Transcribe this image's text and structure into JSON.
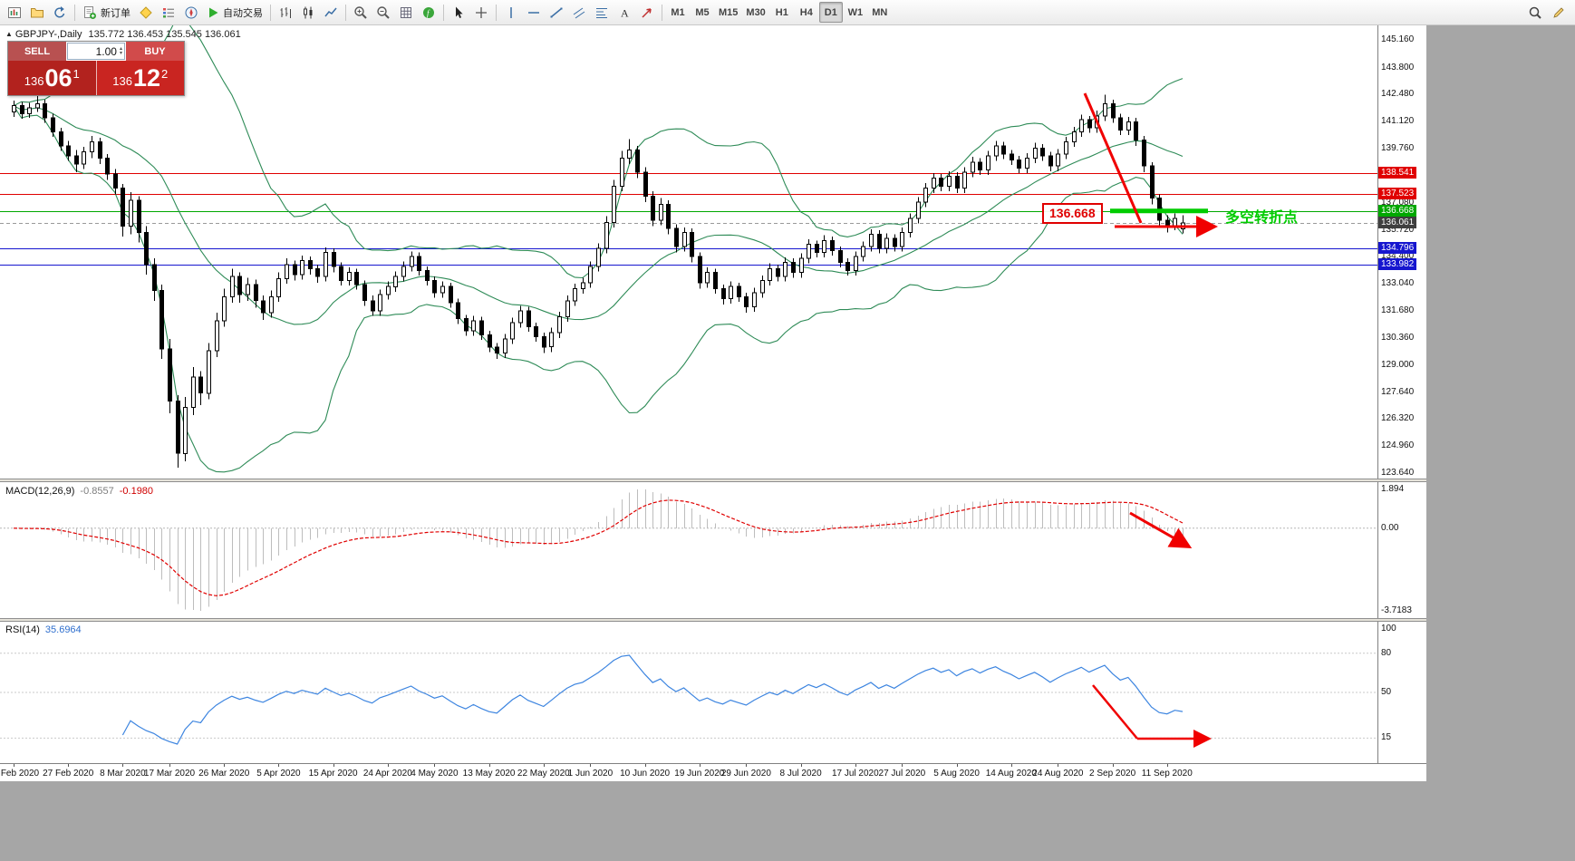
{
  "toolbar": {
    "new_order_label": "新订单",
    "autotrading_label": "自动交易",
    "timeframes": [
      "M1",
      "M5",
      "M15",
      "M30",
      "H1",
      "H4",
      "D1",
      "W1",
      "MN"
    ],
    "active_timeframe": "D1"
  },
  "chart": {
    "title": {
      "symbol": "GBPJPY-,Daily",
      "ohlc": "135.772 136.453 135.545 136.061"
    },
    "one_click": {
      "sell_label": "SELL",
      "buy_label": "BUY",
      "volume": "1.00",
      "sell_price": {
        "prefix": "136",
        "big": "06",
        "sup": "1"
      },
      "buy_price": {
        "prefix": "136",
        "big": "12",
        "sup": "2"
      },
      "sell_head_color": "#b85151",
      "buy_head_color": "#d14b4b",
      "sell_price_color": "#b2221e",
      "buy_price_color": "#c92521"
    },
    "axis_ticks": [
      "145.160",
      "143.800",
      "142.480",
      "141.120",
      "139.760",
      "137.080",
      "135.720",
      "134.400",
      "133.040",
      "131.680",
      "130.360",
      "129.000",
      "127.640",
      "126.320",
      "124.960",
      "123.640"
    ],
    "levels": [
      {
        "label": "138.541",
        "price": 138.541,
        "color": "#e00000"
      },
      {
        "label": "137.523",
        "price": 137.523,
        "color": "#e00000"
      },
      {
        "label": "136.668",
        "price": 136.668,
        "color": "#00a800"
      },
      {
        "label": "134.796",
        "price": 134.796,
        "color": "#1616cf"
      },
      {
        "label": "133.982",
        "price": 133.982,
        "color": "#1616cf"
      }
    ],
    "bid": {
      "label": "136.061",
      "price": 136.061
    },
    "annotations": {
      "level_callout": "136.668",
      "note": "多空转折点"
    }
  },
  "macd": {
    "name": "MACD(12,26,9)",
    "value_main": "-0.8557",
    "value_signal": "-0.1980",
    "scale_top": "1.894",
    "scale_zero": "0.00",
    "scale_bottom": "-3.7183"
  },
  "rsi": {
    "name": "RSI(14)",
    "value": "35.6964",
    "levels": [
      100,
      80,
      50,
      15
    ],
    "level_labels": [
      "100",
      "80",
      "50",
      "15"
    ]
  },
  "chart_data": {
    "type": "candlestick",
    "symbol": "GBPJPY-",
    "timeframe": "Daily",
    "y_range": [
      123.35,
      145.9
    ],
    "x_labels": [
      "18 Feb 2020",
      "27 Feb 2020",
      "8 Mar 2020",
      "17 Mar 2020",
      "26 Mar 2020",
      "5 Apr 2020",
      "15 Apr 2020",
      "24 Apr 2020",
      "4 May 2020",
      "13 May 2020",
      "22 May 2020",
      "1 Jun 2020",
      "10 Jun 2020",
      "19 Jun 2020",
      "29 Jun 2020",
      "8 Jul 2020",
      "17 Jul 2020",
      "27 Jul 2020",
      "5 Aug 2020",
      "14 Aug 2020",
      "24 Aug 2020",
      "2 Sep 2020",
      "11 Sep 2020"
    ],
    "label_indices": [
      0,
      7,
      14,
      20,
      27,
      34,
      41,
      48,
      54,
      61,
      68,
      74,
      81,
      88,
      94,
      101,
      108,
      114,
      121,
      128,
      134,
      141,
      148
    ],
    "ohlc": [
      [
        141.6,
        142.15,
        141.35,
        141.9
      ],
      [
        141.9,
        142.1,
        141.25,
        141.5
      ],
      [
        141.5,
        142.05,
        141.3,
        141.8
      ],
      [
        141.8,
        142.4,
        141.6,
        142.0
      ],
      [
        142.0,
        142.2,
        141.05,
        141.3
      ],
      [
        141.3,
        141.5,
        140.35,
        140.6
      ],
      [
        140.6,
        140.8,
        139.65,
        139.9
      ],
      [
        139.9,
        140.15,
        139.15,
        139.4
      ],
      [
        139.4,
        139.7,
        138.6,
        139.0
      ],
      [
        139.0,
        139.85,
        138.75,
        139.6
      ],
      [
        139.6,
        140.4,
        139.3,
        140.1
      ],
      [
        140.1,
        140.3,
        139.0,
        139.3
      ],
      [
        139.3,
        139.5,
        138.2,
        138.5
      ],
      [
        138.5,
        138.75,
        137.5,
        137.8
      ],
      [
        137.8,
        138.0,
        135.4,
        135.9
      ],
      [
        135.9,
        137.6,
        135.5,
        137.2
      ],
      [
        137.2,
        137.4,
        135.1,
        135.6
      ],
      [
        135.6,
        135.9,
        133.5,
        134.0
      ],
      [
        134.0,
        134.3,
        132.2,
        132.7
      ],
      [
        132.7,
        133.0,
        129.3,
        129.8
      ],
      [
        129.8,
        130.3,
        126.6,
        127.2
      ],
      [
        127.2,
        127.5,
        123.9,
        124.6
      ],
      [
        124.6,
        127.4,
        124.2,
        126.9
      ],
      [
        126.9,
        128.9,
        126.5,
        128.4
      ],
      [
        128.4,
        128.7,
        127.0,
        127.6
      ],
      [
        127.6,
        130.1,
        127.3,
        129.7
      ],
      [
        129.7,
        131.6,
        129.4,
        131.2
      ],
      [
        131.2,
        132.8,
        130.9,
        132.4
      ],
      [
        132.4,
        133.8,
        132.1,
        133.4
      ],
      [
        133.4,
        133.6,
        132.1,
        132.5
      ],
      [
        132.5,
        133.35,
        132.2,
        133.0
      ],
      [
        133.0,
        133.25,
        131.85,
        132.2
      ],
      [
        132.2,
        132.45,
        131.25,
        131.6
      ],
      [
        131.6,
        132.7,
        131.35,
        132.4
      ],
      [
        132.4,
        133.6,
        132.15,
        133.3
      ],
      [
        133.3,
        134.3,
        133.05,
        134.0
      ],
      [
        134.0,
        134.2,
        133.2,
        133.5
      ],
      [
        133.5,
        134.45,
        133.25,
        134.2
      ],
      [
        134.2,
        134.4,
        133.5,
        133.8
      ],
      [
        133.8,
        134.0,
        133.1,
        133.4
      ],
      [
        133.4,
        134.85,
        133.15,
        134.6
      ],
      [
        134.6,
        134.8,
        133.6,
        133.9
      ],
      [
        133.9,
        134.1,
        132.95,
        133.2
      ],
      [
        133.2,
        133.85,
        132.95,
        133.6
      ],
      [
        133.6,
        133.8,
        132.75,
        133.0
      ],
      [
        133.0,
        133.2,
        131.95,
        132.2
      ],
      [
        132.2,
        132.45,
        131.45,
        131.7
      ],
      [
        131.7,
        132.75,
        131.45,
        132.5
      ],
      [
        132.5,
        133.15,
        132.25,
        132.9
      ],
      [
        132.9,
        133.65,
        132.65,
        133.4
      ],
      [
        133.4,
        134.15,
        133.15,
        133.9
      ],
      [
        133.9,
        134.65,
        133.65,
        134.4
      ],
      [
        134.4,
        134.6,
        133.45,
        133.7
      ],
      [
        133.7,
        133.9,
        132.95,
        133.2
      ],
      [
        133.2,
        133.4,
        132.35,
        132.6
      ],
      [
        132.6,
        133.15,
        132.35,
        132.9
      ],
      [
        132.9,
        133.1,
        131.85,
        132.1
      ],
      [
        132.1,
        132.3,
        131.05,
        131.3
      ],
      [
        131.3,
        131.5,
        130.45,
        130.7
      ],
      [
        130.7,
        131.45,
        130.45,
        131.2
      ],
      [
        131.2,
        131.4,
        130.25,
        130.5
      ],
      [
        130.5,
        130.7,
        129.65,
        129.9
      ],
      [
        129.9,
        130.1,
        129.3,
        129.6
      ],
      [
        129.6,
        130.55,
        129.35,
        130.3
      ],
      [
        130.3,
        131.35,
        130.05,
        131.1
      ],
      [
        131.1,
        131.95,
        130.85,
        131.7
      ],
      [
        131.7,
        131.9,
        130.65,
        130.9
      ],
      [
        130.9,
        131.1,
        130.15,
        130.4
      ],
      [
        130.4,
        130.6,
        129.6,
        129.9
      ],
      [
        129.9,
        130.85,
        129.65,
        130.6
      ],
      [
        130.6,
        131.65,
        130.35,
        131.4
      ],
      [
        131.4,
        132.45,
        131.15,
        132.2
      ],
      [
        132.2,
        133.05,
        131.95,
        132.8
      ],
      [
        132.8,
        133.35,
        132.55,
        133.1
      ],
      [
        133.1,
        134.15,
        132.85,
        133.9
      ],
      [
        133.9,
        135.05,
        133.65,
        134.8
      ],
      [
        134.8,
        136.4,
        134.55,
        136.1
      ],
      [
        136.1,
        138.2,
        135.85,
        137.9
      ],
      [
        137.9,
        139.65,
        137.65,
        139.3
      ],
      [
        139.3,
        140.25,
        139.0,
        139.7
      ],
      [
        139.7,
        139.9,
        138.3,
        138.6
      ],
      [
        138.6,
        138.85,
        137.1,
        137.4
      ],
      [
        137.4,
        137.65,
        135.9,
        136.2
      ],
      [
        136.2,
        137.3,
        135.95,
        137.0
      ],
      [
        137.0,
        137.2,
        135.5,
        135.8
      ],
      [
        135.8,
        136.0,
        134.6,
        134.9
      ],
      [
        134.9,
        135.85,
        134.65,
        135.6
      ],
      [
        135.6,
        135.8,
        134.1,
        134.4
      ],
      [
        134.4,
        134.6,
        132.8,
        133.1
      ],
      [
        133.1,
        133.85,
        132.85,
        133.6
      ],
      [
        133.6,
        133.8,
        132.55,
        132.8
      ],
      [
        132.8,
        133.0,
        132.0,
        132.3
      ],
      [
        132.3,
        133.15,
        132.05,
        132.9
      ],
      [
        132.9,
        133.1,
        132.15,
        132.4
      ],
      [
        132.4,
        132.6,
        131.6,
        131.9
      ],
      [
        131.9,
        132.85,
        131.65,
        132.6
      ],
      [
        132.6,
        133.45,
        132.35,
        133.2
      ],
      [
        133.2,
        134.05,
        132.95,
        133.8
      ],
      [
        133.8,
        134.0,
        133.15,
        133.4
      ],
      [
        133.4,
        134.35,
        133.15,
        134.1
      ],
      [
        134.1,
        134.3,
        133.35,
        133.6
      ],
      [
        133.6,
        134.55,
        133.35,
        134.3
      ],
      [
        134.3,
        135.25,
        134.05,
        135.0
      ],
      [
        135.0,
        135.2,
        134.35,
        134.6
      ],
      [
        134.6,
        135.45,
        134.35,
        135.2
      ],
      [
        135.2,
        135.4,
        134.45,
        134.7
      ],
      [
        134.7,
        134.9,
        133.85,
        134.1
      ],
      [
        134.1,
        134.3,
        133.45,
        133.7
      ],
      [
        133.7,
        134.65,
        133.45,
        134.4
      ],
      [
        134.4,
        135.15,
        134.15,
        134.9
      ],
      [
        134.9,
        135.75,
        134.65,
        135.5
      ],
      [
        135.5,
        135.7,
        134.55,
        134.8
      ],
      [
        134.8,
        135.55,
        134.55,
        135.3
      ],
      [
        135.3,
        135.5,
        134.65,
        134.9
      ],
      [
        134.9,
        135.85,
        134.65,
        135.6
      ],
      [
        135.6,
        136.55,
        135.35,
        136.3
      ],
      [
        136.3,
        137.35,
        136.05,
        137.1
      ],
      [
        137.1,
        138.05,
        136.85,
        137.8
      ],
      [
        137.8,
        138.55,
        137.55,
        138.3
      ],
      [
        138.3,
        138.5,
        137.65,
        137.9
      ],
      [
        137.9,
        138.65,
        137.65,
        138.4
      ],
      [
        138.4,
        138.6,
        137.55,
        137.8
      ],
      [
        137.8,
        138.85,
        137.55,
        138.6
      ],
      [
        138.6,
        139.35,
        138.35,
        139.1
      ],
      [
        139.1,
        139.3,
        138.45,
        138.7
      ],
      [
        138.7,
        139.65,
        138.45,
        139.4
      ],
      [
        139.4,
        140.15,
        139.15,
        139.9
      ],
      [
        139.9,
        140.1,
        139.25,
        139.5
      ],
      [
        139.5,
        139.7,
        138.95,
        139.2
      ],
      [
        139.2,
        139.4,
        138.55,
        138.8
      ],
      [
        138.8,
        139.55,
        138.55,
        139.3
      ],
      [
        139.3,
        140.05,
        139.05,
        139.8
      ],
      [
        139.8,
        140.0,
        139.15,
        139.4
      ],
      [
        139.4,
        139.6,
        138.65,
        138.9
      ],
      [
        138.9,
        139.75,
        138.65,
        139.5
      ],
      [
        139.5,
        140.35,
        139.25,
        140.1
      ],
      [
        140.1,
        140.85,
        139.85,
        140.6
      ],
      [
        140.6,
        141.45,
        140.35,
        141.2
      ],
      [
        141.2,
        141.4,
        140.55,
        140.8
      ],
      [
        140.8,
        141.65,
        140.55,
        141.4
      ],
      [
        141.4,
        142.45,
        141.15,
        142.0
      ],
      [
        142.0,
        142.2,
        141.05,
        141.3
      ],
      [
        141.3,
        141.5,
        140.45,
        140.7
      ],
      [
        140.7,
        141.35,
        140.45,
        141.1
      ],
      [
        141.1,
        141.3,
        139.9,
        140.2
      ],
      [
        140.2,
        140.4,
        138.6,
        138.9
      ],
      [
        138.9,
        139.1,
        137.0,
        137.3
      ],
      [
        137.3,
        137.5,
        135.9,
        136.2
      ],
      [
        136.2,
        136.45,
        135.6,
        135.9
      ],
      [
        135.9,
        136.55,
        135.7,
        136.3
      ],
      [
        135.772,
        136.453,
        135.545,
        136.061
      ]
    ],
    "indicators": {
      "bollinger": {
        "period": 20,
        "deviation": 2
      },
      "macd": {
        "fast": 12,
        "slow": 26,
        "signal": 9
      },
      "rsi": {
        "period": 14
      }
    },
    "colors": {
      "up": "#ffffff",
      "down": "#000000",
      "outline": "#000000",
      "bollinger": "#2e8b57",
      "macd_hist": "#bdbdbd",
      "macd_signal": "#e00000",
      "rsi": "#3d85e0",
      "annotation_red": "#f00000",
      "annotation_green": "#00cc00"
    }
  }
}
